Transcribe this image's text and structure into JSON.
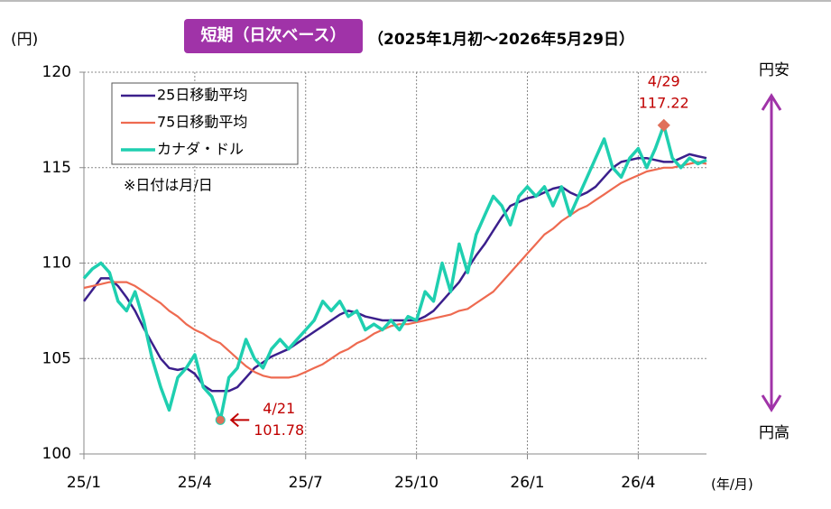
{
  "chart_data": {
    "type": "line",
    "title": "短期（日次ベース）",
    "subtitle": "（2025年1月初～2026年5月29日）",
    "y_axis_label": "(円)",
    "x_axis_label": "(年/月)",
    "note": "※日付は月/日",
    "upper_label": "円安",
    "lower_label": "円高",
    "categories": [
      "25/1",
      null,
      null,
      null,
      null,
      null,
      null,
      null,
      null,
      null,
      null,
      null,
      null,
      "25/4",
      null,
      null,
      null,
      null,
      null,
      null,
      null,
      null,
      null,
      null,
      null,
      null,
      "25/7",
      null,
      null,
      null,
      null,
      null,
      null,
      null,
      null,
      null,
      null,
      null,
      null,
      "25/10",
      null,
      null,
      null,
      null,
      null,
      null,
      null,
      null,
      null,
      null,
      null,
      null,
      "26/1",
      null,
      null,
      null,
      null,
      null,
      null,
      null,
      null,
      null,
      null,
      null,
      null,
      "26/4",
      null,
      null,
      null,
      null,
      null,
      null,
      null,
      null
    ],
    "series": [
      {
        "name": "25日移動平均",
        "color": "#3b1f8c",
        "width": 2.5,
        "values": [
          108.0,
          108.6,
          109.2,
          109.2,
          108.8,
          108.2,
          107.5,
          106.6,
          105.8,
          105.0,
          104.5,
          104.4,
          104.5,
          104.2,
          103.6,
          103.3,
          103.3,
          103.3,
          103.5,
          104.0,
          104.5,
          104.8,
          105.1,
          105.3,
          105.5,
          105.8,
          106.1,
          106.4,
          106.7,
          107.0,
          107.3,
          107.5,
          107.4,
          107.2,
          107.1,
          107.0,
          107.0,
          107.0,
          107.0,
          107.0,
          107.2,
          107.5,
          108.0,
          108.5,
          109.0,
          109.7,
          110.4,
          111.0,
          111.7,
          112.4,
          113.0,
          113.2,
          113.4,
          113.5,
          113.7,
          113.9,
          114.0,
          113.7,
          113.5,
          113.7,
          114.0,
          114.5,
          115.0,
          115.3,
          115.4,
          115.5,
          115.5,
          115.4,
          115.3,
          115.3,
          115.5,
          115.7,
          115.6,
          115.5
        ]
      },
      {
        "name": "75日移動平均",
        "color": "#ee6a50",
        "width": 2.2,
        "values": [
          108.7,
          108.8,
          108.9,
          109.0,
          109.0,
          109.0,
          108.8,
          108.5,
          108.2,
          107.9,
          107.5,
          107.2,
          106.8,
          106.5,
          106.3,
          106.0,
          105.8,
          105.4,
          105.0,
          104.6,
          104.3,
          104.1,
          104.0,
          104.0,
          104.0,
          104.1,
          104.3,
          104.5,
          104.7,
          105.0,
          105.3,
          105.5,
          105.8,
          106.0,
          106.3,
          106.5,
          106.7,
          106.8,
          106.8,
          106.9,
          107.0,
          107.1,
          107.2,
          107.3,
          107.5,
          107.6,
          107.9,
          108.2,
          108.5,
          109.0,
          109.5,
          110.0,
          110.5,
          111.0,
          111.5,
          111.8,
          112.2,
          112.5,
          112.8,
          113.0,
          113.3,
          113.6,
          113.9,
          114.2,
          114.4,
          114.6,
          114.8,
          114.9,
          115.0,
          115.0,
          115.1,
          115.2,
          115.3,
          115.2
        ]
      },
      {
        "name": "カナダ・ドル",
        "color": "#1fcfb0",
        "width": 3.5,
        "values": [
          109.2,
          109.7,
          110.0,
          109.5,
          108.0,
          107.5,
          108.5,
          107.0,
          105.0,
          103.5,
          102.3,
          104.0,
          104.5,
          105.2,
          103.5,
          103.0,
          101.78,
          104.0,
          104.5,
          106.0,
          105.0,
          104.5,
          105.5,
          106.0,
          105.5,
          106.0,
          106.5,
          107.0,
          108.0,
          107.5,
          108.0,
          107.2,
          107.5,
          106.5,
          106.8,
          106.5,
          107.0,
          106.5,
          107.2,
          107.0,
          108.5,
          108.0,
          110.0,
          108.5,
          111.0,
          109.5,
          111.5,
          112.5,
          113.5,
          113.0,
          112.0,
          113.5,
          114.0,
          113.5,
          114.0,
          113.0,
          114.0,
          112.5,
          113.5,
          114.5,
          115.5,
          116.5,
          115.0,
          114.5,
          115.5,
          116.0,
          115.0,
          116.0,
          117.22,
          115.5,
          115.0,
          115.5,
          115.2,
          115.4
        ]
      }
    ],
    "annotations": [
      {
        "label": "4/21",
        "value": 101.78
      },
      {
        "label": "4/29",
        "value": 117.22
      }
    ],
    "ylim": [
      100,
      120
    ],
    "yticks": [
      100,
      105,
      110,
      115,
      120
    ],
    "grid": true
  }
}
